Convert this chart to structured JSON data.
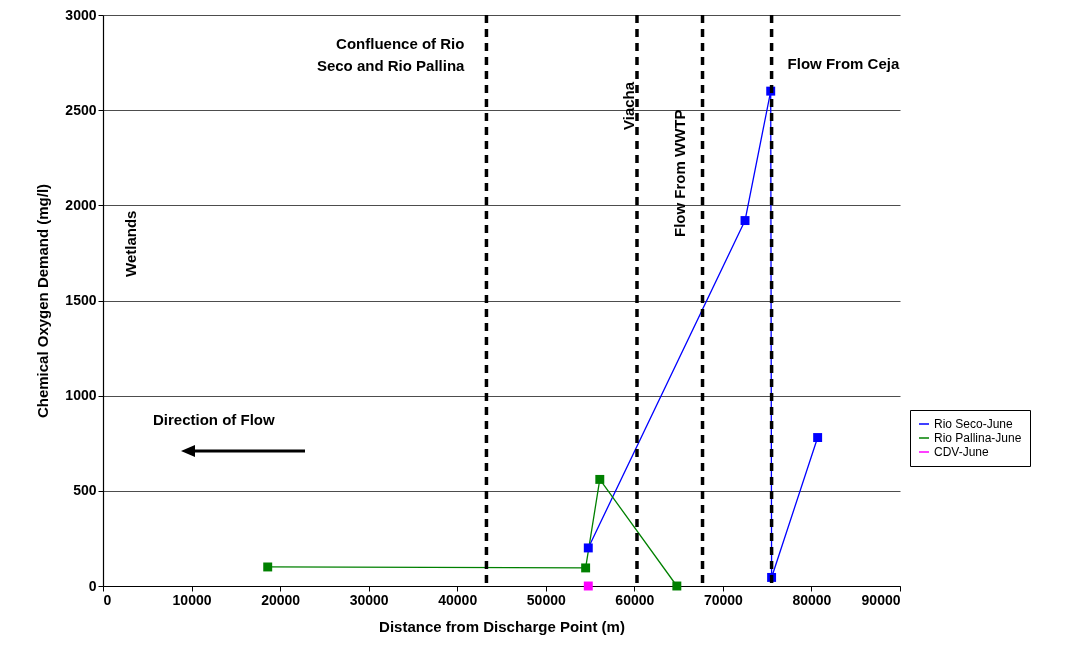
{
  "chart_data": {
    "type": "line",
    "xlabel": "Distance from Discharge Point (m)",
    "ylabel": "Chemical Oxygen Demand (mg/l)",
    "series": [
      {
        "name": "Rio Seco-June",
        "color": "#0000ff",
        "x": [
          54800,
          72500,
          75400,
          75500,
          80700
        ],
        "values": [
          200,
          1920,
          2600,
          45,
          780
        ]
      },
      {
        "name": "Rio Pallina-June",
        "color": "#008000",
        "x": [
          18600,
          54500,
          56100,
          64800
        ],
        "values": [
          100,
          95,
          560,
          0
        ]
      },
      {
        "name": "CDV-June",
        "color": "#ff00ff",
        "x": [
          54800
        ],
        "values": [
          0
        ]
      }
    ],
    "xlim": [
      0,
      90000
    ],
    "xticks": [
      0,
      10000,
      20000,
      30000,
      40000,
      50000,
      60000,
      70000,
      80000,
      90000
    ],
    "ylim": [
      0,
      3000
    ],
    "yticks": [
      0,
      500,
      1000,
      1500,
      2000,
      2500,
      3000
    ],
    "ref_lines": [
      {
        "axis": "x",
        "value": 43300,
        "label": "Confluence of Rio\nSeco and Rio Pallina",
        "color": "#000000",
        "line_style": "dashed"
      },
      {
        "axis": "x",
        "value": 60300,
        "label": "Viacha",
        "color": "#000000",
        "line_style": "dashed"
      },
      {
        "axis": "x",
        "value": 67700,
        "label": "Flow From WWTP",
        "color": "#000000",
        "line_style": "dashed"
      },
      {
        "axis": "x",
        "value": 75500,
        "label": "Flow From Ceja",
        "color": "#000000",
        "line_style": "dashed"
      }
    ],
    "annotations": [
      "Wetlands",
      "Direction of Flow"
    ],
    "grid": "y",
    "legend": "right",
    "marker": "square",
    "line_style": "solid"
  }
}
